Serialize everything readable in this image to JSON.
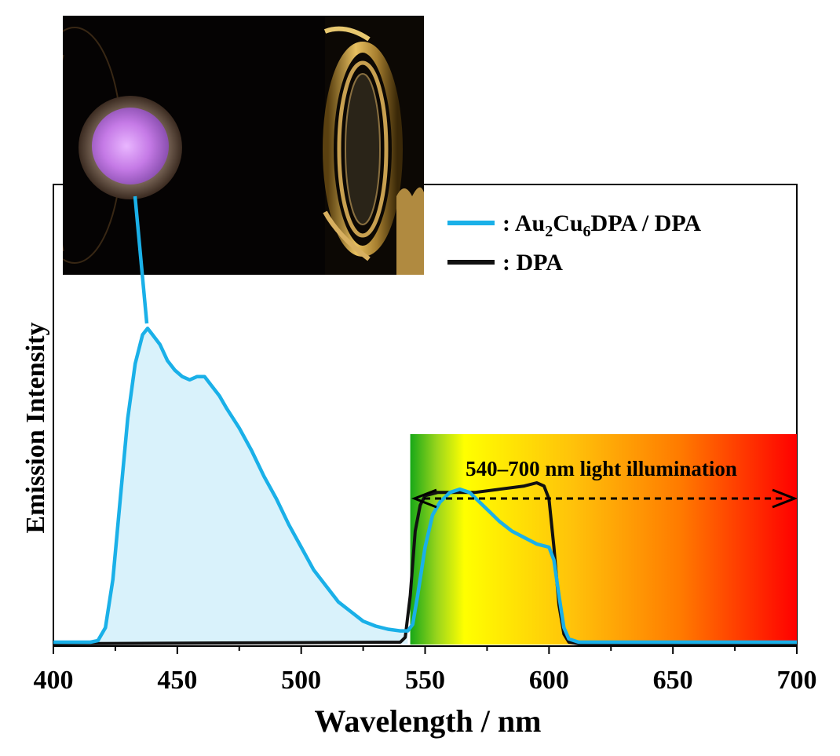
{
  "chart_data": {
    "type": "line",
    "xlabel": "Wavelength / nm",
    "ylabel": "Emission Intensity",
    "xlim": [
      400,
      700
    ],
    "ylim": [
      0,
      1.0
    ],
    "x_ticks": [
      400,
      450,
      500,
      550,
      600,
      650,
      700
    ],
    "grid": false,
    "legend_position": "top-right",
    "illumination_band": {
      "x_range": [
        544,
        700
      ],
      "label": "540–700 nm light illumination",
      "gradient_colors": [
        "#20b020",
        "#ffff00",
        "#ff9900",
        "#ff0000"
      ]
    },
    "series": [
      {
        "name": ": Au2Cu6DPA / DPA",
        "name_main": ": Au",
        "name_sub1": "2",
        "name_mid": "Cu",
        "name_sub2": "6",
        "name_end": "DPA / DPA",
        "color": "#1ab0e8",
        "fill": "#d9f2fb",
        "x": [
          400,
          415,
          418,
          421,
          424,
          427,
          430,
          433,
          436,
          438,
          440,
          443,
          446,
          449,
          452,
          455,
          458,
          461,
          464,
          467,
          470,
          475,
          480,
          485,
          490,
          495,
          500,
          505,
          510,
          515,
          520,
          525,
          530,
          535,
          540,
          543,
          545,
          547,
          550,
          553,
          556,
          560,
          564,
          568,
          572,
          576,
          580,
          585,
          590,
          595,
          600,
          602,
          604,
          606,
          608,
          612,
          620,
          650,
          700
        ],
        "y": [
          0.005,
          0.005,
          0.01,
          0.05,
          0.2,
          0.45,
          0.7,
          0.87,
          0.96,
          0.98,
          0.96,
          0.93,
          0.88,
          0.85,
          0.83,
          0.82,
          0.83,
          0.83,
          0.8,
          0.77,
          0.73,
          0.67,
          0.6,
          0.52,
          0.45,
          0.37,
          0.3,
          0.23,
          0.18,
          0.13,
          0.1,
          0.07,
          0.055,
          0.045,
          0.04,
          0.04,
          0.06,
          0.15,
          0.3,
          0.4,
          0.44,
          0.47,
          0.48,
          0.47,
          0.44,
          0.41,
          0.38,
          0.35,
          0.33,
          0.31,
          0.3,
          0.26,
          0.15,
          0.05,
          0.015,
          0.005,
          0.005,
          0.005,
          0.005
        ]
      },
      {
        "name": ": DPA",
        "color": "#111111",
        "x": [
          400,
          540,
          542,
          544,
          546,
          548,
          550,
          555,
          560,
          570,
          580,
          590,
          595,
          598,
          600,
          602,
          604,
          606,
          608,
          612,
          650,
          700
        ],
        "y": [
          0.0,
          0.005,
          0.02,
          0.15,
          0.35,
          0.43,
          0.46,
          0.47,
          0.47,
          0.47,
          0.48,
          0.49,
          0.5,
          0.49,
          0.45,
          0.3,
          0.12,
          0.03,
          0.005,
          0.0,
          0.0,
          0.0
        ]
      }
    ]
  },
  "inset_photo": {
    "description_icon": "glowing-violet-sample-photo",
    "glow_color": "#c67ae6"
  }
}
